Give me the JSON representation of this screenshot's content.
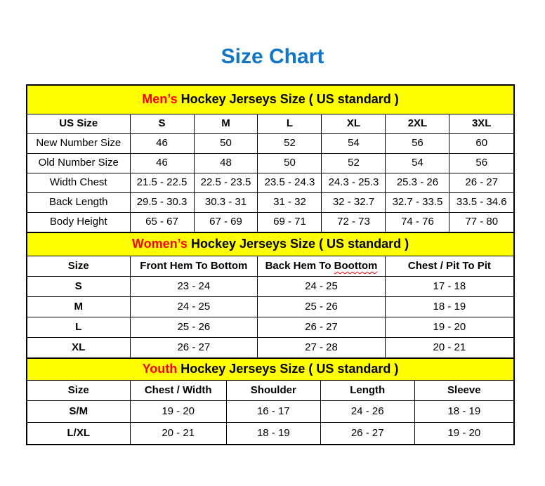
{
  "page": {
    "title": "Size Chart"
  },
  "colors": {
    "title_blue": "#1276c4",
    "section_yellow": "#ffff00",
    "accent_red": "#ff0000",
    "border_black": "#000000"
  },
  "sections": [
    {
      "id": "mens",
      "header_accent": "Men’s",
      "header_rest": " Hockey Jerseys Size ( US standard )",
      "columns": [
        "US Size",
        "S",
        "M",
        "L",
        "XL",
        "2XL",
        "3XL"
      ],
      "rows": [
        [
          "New Number Size",
          "46",
          "50",
          "52",
          "54",
          "56",
          "60"
        ],
        [
          "Old Number Size",
          "46",
          "48",
          "50",
          "52",
          "54",
          "56"
        ],
        [
          "Width Chest",
          "21.5 - 22.5",
          "22.5 - 23.5",
          "23.5 - 24.3",
          "24.3 - 25.3",
          "25.3 - 26",
          "26 - 27"
        ],
        [
          "Back Length",
          "29.5 - 30.3",
          "30.3 - 31",
          "31 - 32",
          "32 - 32.7",
          "32.7 - 33.5",
          "33.5 - 34.6"
        ],
        [
          "Body Height",
          "65 - 67",
          "67 - 69",
          "69 - 71",
          "72 - 73",
          "74 - 76",
          "77 - 80"
        ]
      ]
    },
    {
      "id": "womens",
      "header_accent": "Women’s",
      "header_rest": " Hockey Jerseys Size ( US standard )",
      "columns": [
        "Size",
        "Front Hem To Bottom",
        {
          "text": "Back Hem To ",
          "wavy": "Boottom"
        },
        "Chest / Pit To Pit"
      ],
      "rows": [
        [
          "S",
          "23 - 24",
          "24 - 25",
          "17 - 18"
        ],
        [
          "M",
          "24 - 25",
          "25 - 26",
          "18 - 19"
        ],
        [
          "L",
          "25 - 26",
          "26 - 27",
          "19 - 20"
        ],
        [
          "XL",
          "26 - 27",
          "27 - 28",
          "20 - 21"
        ]
      ]
    },
    {
      "id": "youth",
      "header_accent": "Youth",
      "header_rest": " Hockey Jerseys Size ( US standard )",
      "columns": [
        "Size",
        "Chest / Width",
        "Shoulder",
        "Length",
        "Sleeve"
      ],
      "rows": [
        [
          "S/M",
          "19 - 20",
          "16 - 17",
          "24 - 26",
          "18 - 19"
        ],
        [
          "L/XL",
          "20 - 21",
          "18 - 19",
          "26 - 27",
          "19 - 20"
        ]
      ]
    }
  ],
  "chart_data": [
    {
      "type": "table",
      "title": "Men’s Hockey Jerseys Size ( US standard )",
      "columns": [
        "US Size",
        "S",
        "M",
        "L",
        "XL",
        "2XL",
        "3XL"
      ],
      "rows": [
        [
          "New Number Size",
          "46",
          "50",
          "52",
          "54",
          "56",
          "60"
        ],
        [
          "Old Number Size",
          "46",
          "48",
          "50",
          "52",
          "54",
          "56"
        ],
        [
          "Width Chest",
          "21.5 - 22.5",
          "22.5 - 23.5",
          "23.5 - 24.3",
          "24.3 - 25.3",
          "25.3 - 26",
          "26 - 27"
        ],
        [
          "Back Length",
          "29.5 - 30.3",
          "30.3 - 31",
          "31 - 32",
          "32 - 32.7",
          "32.7 - 33.5",
          "33.5 - 34.6"
        ],
        [
          "Body Height",
          "65 - 67",
          "67 - 69",
          "69 - 71",
          "72 - 73",
          "74 - 76",
          "77 - 80"
        ]
      ]
    },
    {
      "type": "table",
      "title": "Women’s Hockey Jerseys Size ( US standard )",
      "columns": [
        "Size",
        "Front Hem To Bottom",
        "Back Hem To Boottom",
        "Chest / Pit To Pit"
      ],
      "rows": [
        [
          "S",
          "23 - 24",
          "24 - 25",
          "17 - 18"
        ],
        [
          "M",
          "24 - 25",
          "25 - 26",
          "18 - 19"
        ],
        [
          "L",
          "25 - 26",
          "26 - 27",
          "19 - 20"
        ],
        [
          "XL",
          "26 - 27",
          "27 - 28",
          "20 - 21"
        ]
      ]
    },
    {
      "type": "table",
      "title": "Youth Hockey Jerseys Size ( US standard )",
      "columns": [
        "Size",
        "Chest / Width",
        "Shoulder",
        "Length",
        "Sleeve"
      ],
      "rows": [
        [
          "S/M",
          "19 - 20",
          "16 - 17",
          "24 - 26",
          "18 - 19"
        ],
        [
          "L/XL",
          "20 - 21",
          "18 - 19",
          "26 - 27",
          "19 - 20"
        ]
      ]
    }
  ]
}
